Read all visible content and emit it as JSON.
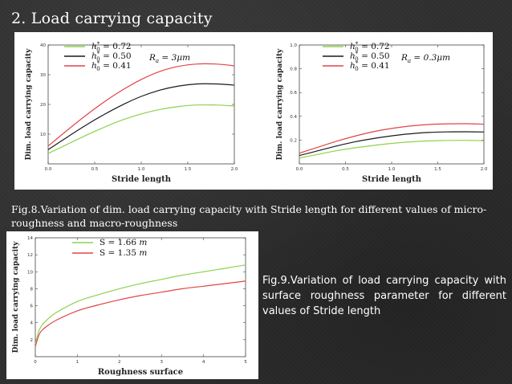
{
  "slide": {
    "title": "2. Load carrying capacity",
    "caption_fig8": "Fig.8.Variation of  dim. load carrying capacity with Stride  length for different values of micro- roughness and macro-roughness",
    "caption_fig9": "Fig.9.Variation of  load carrying capacity with surface  roughness  parameter  for  different values of Stride  length"
  },
  "colors": {
    "green": "#8fd14f",
    "black": "#1a1a1a",
    "red": "#e0454a"
  },
  "chart_data": [
    {
      "id": "fig8a",
      "type": "line",
      "xlabel": "Stride length",
      "ylabel": "Dim. load carrying capacity",
      "xlim": [
        0,
        2.0
      ],
      "ylim": [
        0,
        40
      ],
      "xticks": [
        "0.0",
        "0.5",
        "1.0",
        "1.5",
        "2.0"
      ],
      "xtick_values": [
        0,
        0.5,
        1.0,
        1.5,
        2.0
      ],
      "yticks": [
        "10",
        "20",
        "30",
        "40"
      ],
      "ytick_values": [
        10,
        20,
        30,
        40
      ],
      "annotation": "Ra = 3μm",
      "x": [
        0,
        0.2,
        0.4,
        0.6,
        0.8,
        1.0,
        1.2,
        1.4,
        1.6,
        1.8,
        2.0
      ],
      "series": [
        {
          "name": "h0* = 0.72",
          "color": "green",
          "values": [
            3.5,
            6.5,
            9.5,
            12.3,
            14.8,
            16.8,
            18.3,
            19.3,
            19.8,
            19.8,
            19.5
          ]
        },
        {
          "name": "h0* = 0.50",
          "color": "black",
          "values": [
            4.8,
            8.9,
            12.9,
            16.6,
            19.9,
            22.7,
            24.8,
            26.2,
            26.9,
            26.9,
            26.5
          ]
        },
        {
          "name": "h0* = 0.41",
          "color": "red",
          "values": [
            6.0,
            11.2,
            16.2,
            20.8,
            24.9,
            28.4,
            31.1,
            32.8,
            33.6,
            33.6,
            33.0
          ]
        }
      ]
    },
    {
      "id": "fig8b",
      "type": "line",
      "xlabel": "Stride  length",
      "ylabel": "Dim. load carrying capacity",
      "xlim": [
        0,
        2.0
      ],
      "ylim": [
        0,
        1.0
      ],
      "xticks": [
        "0.0",
        "0.5",
        "1.0",
        "1.5",
        "2.0"
      ],
      "xtick_values": [
        0,
        0.5,
        1.0,
        1.5,
        2.0
      ],
      "yticks": [
        "0.2",
        "0.4",
        "0.6",
        "0.8",
        "1.0"
      ],
      "ytick_values": [
        0.2,
        0.4,
        0.6,
        0.8,
        1.0
      ],
      "annotation": "Ra = 0.3μm",
      "x": [
        0,
        0.2,
        0.4,
        0.6,
        0.8,
        1.0,
        1.2,
        1.4,
        1.6,
        1.8,
        2.0
      ],
      "series": [
        {
          "name": "h0* = 0.72",
          "color": "green",
          "values": [
            0.05,
            0.08,
            0.11,
            0.135,
            0.155,
            0.172,
            0.185,
            0.193,
            0.197,
            0.198,
            0.195
          ]
        },
        {
          "name": "h0* = 0.50",
          "color": "black",
          "values": [
            0.07,
            0.11,
            0.15,
            0.185,
            0.213,
            0.236,
            0.253,
            0.264,
            0.269,
            0.27,
            0.268
          ]
        },
        {
          "name": "h0* = 0.41",
          "color": "red",
          "values": [
            0.09,
            0.14,
            0.19,
            0.233,
            0.27,
            0.298,
            0.318,
            0.331,
            0.337,
            0.338,
            0.334
          ]
        }
      ]
    },
    {
      "id": "fig9",
      "type": "line",
      "xlabel": "Roughness surface",
      "ylabel": "Dim. load carrying capacity",
      "xlim": [
        0,
        5
      ],
      "ylim": [
        0,
        14
      ],
      "xticks": [
        "0",
        "1",
        "2",
        "3",
        "4",
        "5"
      ],
      "xtick_values": [
        0,
        1,
        2,
        3,
        4,
        5
      ],
      "yticks": [
        "2",
        "4",
        "6",
        "8",
        "10",
        "12",
        "14"
      ],
      "ytick_values": [
        2,
        4,
        6,
        8,
        10,
        12,
        14
      ],
      "x": [
        0,
        0.1,
        0.25,
        0.5,
        1.0,
        1.5,
        2.0,
        2.5,
        3.0,
        3.5,
        4.0,
        4.5,
        5.0
      ],
      "series": [
        {
          "name": "S = 1.66 m",
          "color": "green",
          "values": [
            1.5,
            3.2,
            4.2,
            5.2,
            6.5,
            7.3,
            8.0,
            8.6,
            9.1,
            9.6,
            10.0,
            10.4,
            10.8
          ]
        },
        {
          "name": "S = 1.35 m",
          "color": "red",
          "values": [
            1.2,
            2.7,
            3.5,
            4.3,
            5.4,
            6.1,
            6.7,
            7.2,
            7.6,
            8.0,
            8.3,
            8.6,
            8.9
          ]
        }
      ]
    }
  ],
  "legends": {
    "fig8a": [
      {
        "h": "h",
        "sub": "0",
        "sup": "*",
        "eq": " = 0.72",
        "color": "green"
      },
      {
        "h": "h",
        "sub": "0",
        "sup": "*",
        "eq": " = 0.50",
        "color": "black"
      },
      {
        "h": "h",
        "sub": "0",
        "sup": "*",
        "eq": " = 0.41",
        "color": "red"
      }
    ],
    "fig8b": [
      {
        "h": "h",
        "sub": "0",
        "sup": "*",
        "eq": " = 0.72",
        "color": "green"
      },
      {
        "h": "h",
        "sub": "0",
        "sup": "*",
        "eq": " = 0.50",
        "color": "black"
      },
      {
        "h": "h",
        "sub": "0",
        "sup": "*",
        "eq": " = 0.41",
        "color": "red"
      }
    ],
    "fig8a_annotation": {
      "prefix": "R",
      "sub": "a",
      "rest": " = 3μm"
    },
    "fig8b_annotation": {
      "prefix": "R",
      "sub": "a",
      "rest": " = 0.3μm"
    },
    "fig9": [
      {
        "text": "S = 1.66 ",
        "unit": "m",
        "color": "green"
      },
      {
        "text": "S = 1.35 ",
        "unit": "m",
        "color": "red"
      }
    ]
  }
}
